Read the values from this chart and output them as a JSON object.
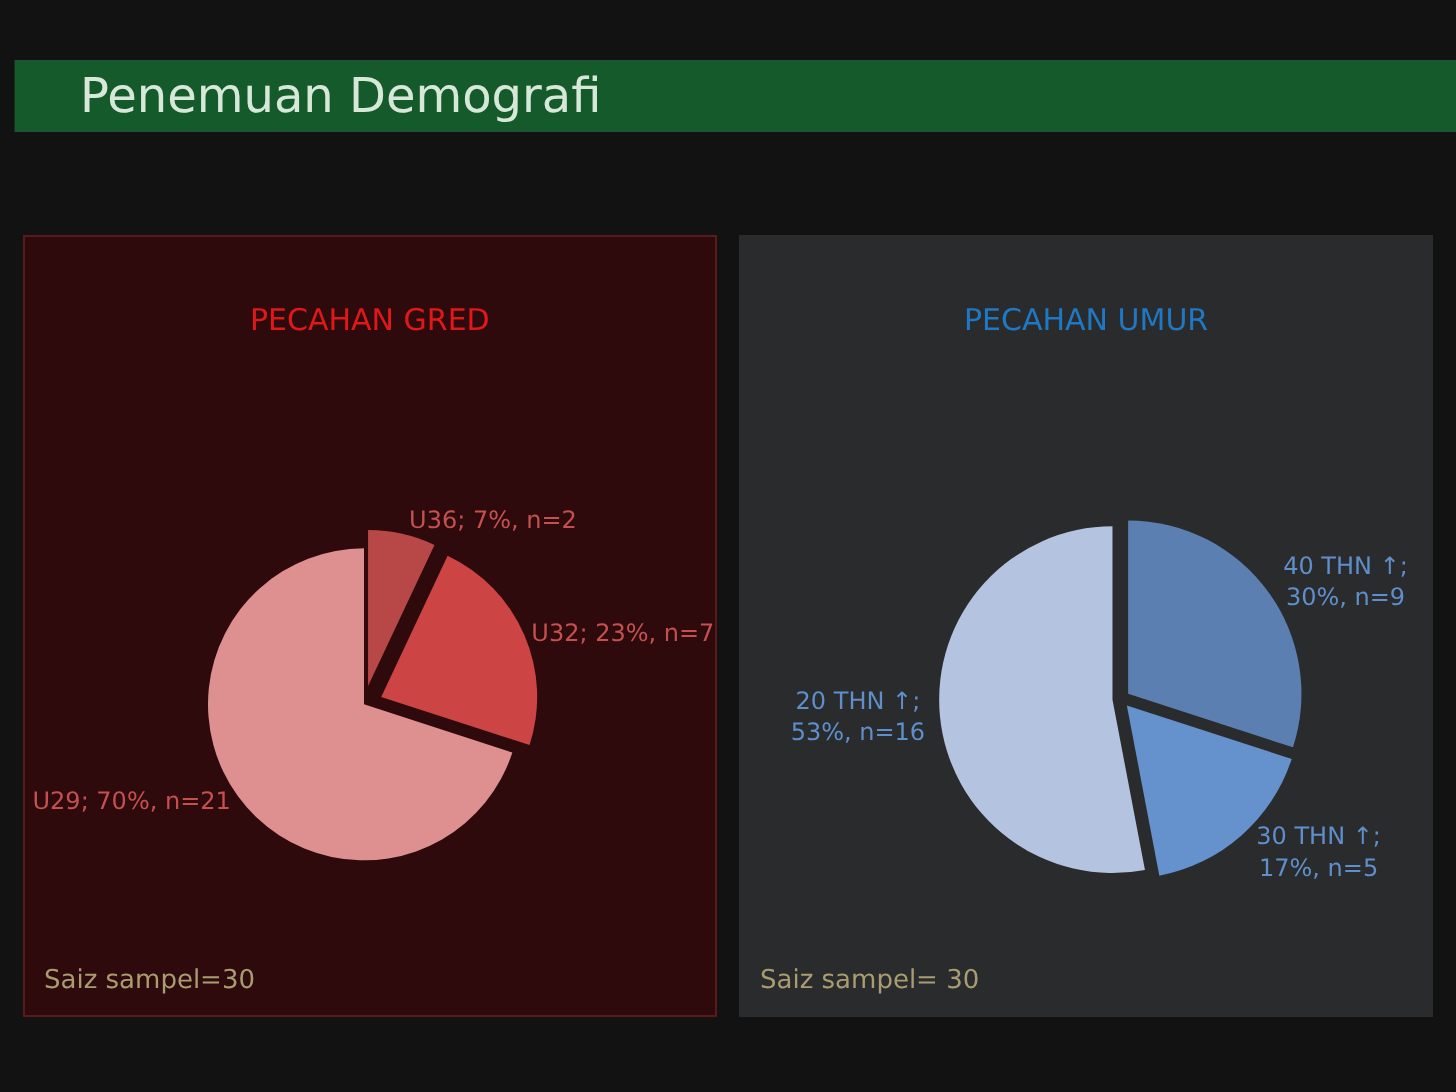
{
  "chart_data": [
    {
      "type": "other",
      "title": "Penemuan Demografi"
    },
    {
      "type": "pie",
      "title": "PECAHAN GRED",
      "categories": [
        "U36; 7%, n=2",
        "U32; 23%, n=7",
        "U29; 70%, n=21"
      ],
      "values": [
        7,
        23,
        70
      ],
      "colors": [
        "#b84848",
        "#cc4444",
        "#de8f8f"
      ],
      "annotations": [
        "Saiz sampel=30"
      ]
    },
    {
      "type": "pie",
      "title": "PECAHAN UMUR",
      "categories": [
        "40 THN ↑;\n30%, n=9",
        "30 THN ↑;\n17%, n=5",
        "20 THN ↑;\n53%, n=16"
      ],
      "values": [
        30,
        17,
        53
      ],
      "colors": [
        "#5a7fb0",
        "#6592cc",
        "#b3c3e0"
      ],
      "annotations": [
        "Saiz sampel= 30"
      ]
    }
  ]
}
